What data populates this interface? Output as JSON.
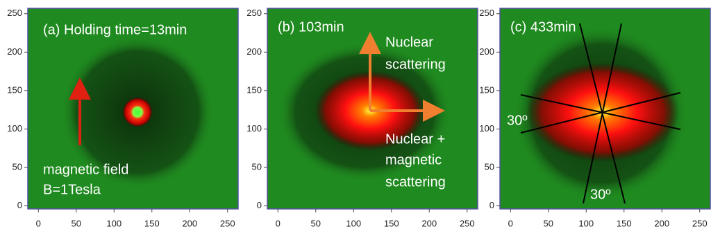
{
  "chart_data": [
    {
      "type": "image",
      "title": "(a) Holding time=13min",
      "annotations": [
        "magnetic field",
        "B=1Tesla"
      ],
      "xlim": [
        -14,
        264
      ],
      "ylim": [
        -4,
        257
      ],
      "xticks": [
        0,
        50,
        100,
        150,
        200,
        250
      ],
      "yticks": [
        0,
        50,
        100,
        150,
        200,
        250
      ]
    },
    {
      "type": "image",
      "title": "(b) 103min",
      "annotations": [
        "Nuclear",
        "scattering",
        "Nuclear +",
        "magnetic",
        "scattering"
      ],
      "xlim": [
        -14,
        264
      ],
      "ylim": [
        -4,
        257
      ],
      "xticks": [
        0,
        50,
        100,
        150,
        200,
        250
      ],
      "yticks": [
        0,
        50,
        100,
        150,
        200,
        250
      ]
    },
    {
      "type": "image",
      "title": "(c) 433min",
      "annotations": [
        "30º",
        "30º"
      ],
      "xlim": [
        -14,
        264
      ],
      "ylim": [
        -4,
        257
      ],
      "xticks": [
        0,
        50,
        100,
        150,
        200,
        250
      ],
      "yticks": [
        0,
        50,
        100,
        150,
        200,
        250
      ]
    }
  ]
}
